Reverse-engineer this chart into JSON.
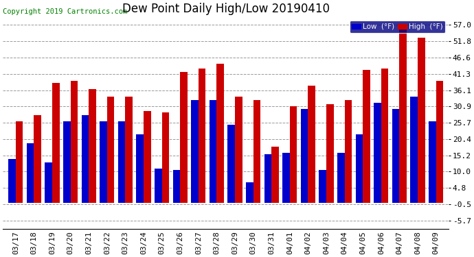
{
  "title": "Dew Point Daily High/Low 20190410",
  "copyright": "Copyright 2019 Cartronics.com",
  "dates": [
    "03/17",
    "03/18",
    "03/19",
    "03/20",
    "03/21",
    "03/22",
    "03/23",
    "03/24",
    "03/25",
    "03/26",
    "03/27",
    "03/28",
    "03/29",
    "03/30",
    "03/31",
    "04/01",
    "04/02",
    "04/03",
    "04/04",
    "04/05",
    "04/06",
    "04/07",
    "04/08",
    "04/09"
  ],
  "low": [
    14.0,
    19.0,
    13.0,
    26.0,
    28.0,
    26.0,
    26.0,
    22.0,
    11.0,
    10.5,
    33.0,
    33.0,
    25.0,
    6.5,
    15.5,
    16.0,
    30.0,
    10.5,
    16.0,
    22.0,
    32.0,
    30.0,
    34.0,
    26.0
  ],
  "high": [
    26.0,
    28.0,
    38.5,
    39.0,
    36.5,
    34.0,
    34.0,
    29.5,
    29.0,
    42.0,
    43.0,
    44.5,
    34.0,
    33.0,
    18.0,
    31.0,
    37.5,
    31.5,
    33.0,
    42.5,
    43.0,
    57.0,
    53.0,
    39.0
  ],
  "y_ticks": [
    -5.7,
    -0.5,
    4.8,
    10.0,
    15.2,
    20.4,
    25.7,
    30.9,
    36.1,
    41.3,
    46.6,
    51.8,
    57.0
  ],
  "ymin": -8.5,
  "ymax": 59.5,
  "bar_width": 0.4,
  "low_color": "#0000cc",
  "high_color": "#cc0000",
  "bg_color": "#ffffff",
  "grid_color": "#999999",
  "title_fontsize": 12,
  "tick_fontsize": 8,
  "copyright_fontsize": 7.5
}
